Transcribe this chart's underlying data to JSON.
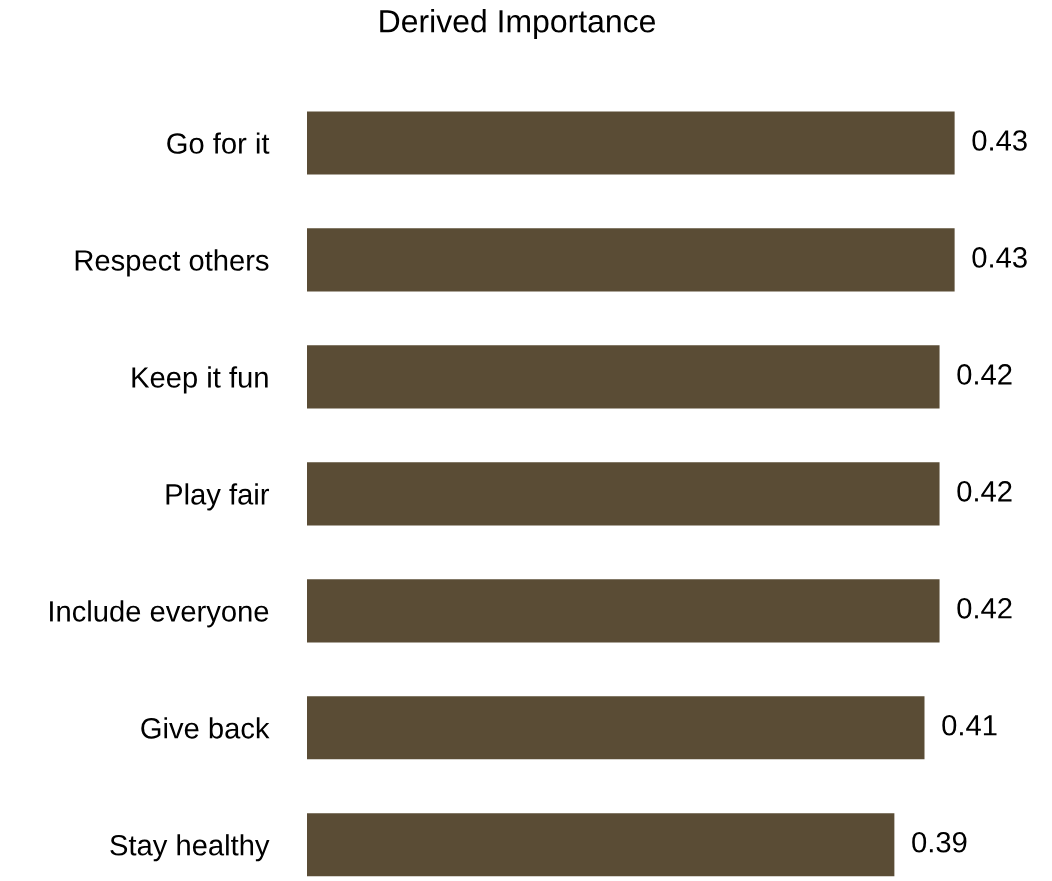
{
  "chart_data": {
    "type": "bar",
    "orientation": "horizontal",
    "title": "Derived Importance",
    "categories": [
      "Go for it",
      "Respect others",
      "Keep it fun",
      "Play fair",
      "Include everyone",
      "Give back",
      "Stay healthy"
    ],
    "values": [
      0.43,
      0.43,
      0.42,
      0.42,
      0.42,
      0.41,
      0.39
    ],
    "color": "#5a4c35",
    "tick_labels": "y",
    "data_labels": true
  }
}
